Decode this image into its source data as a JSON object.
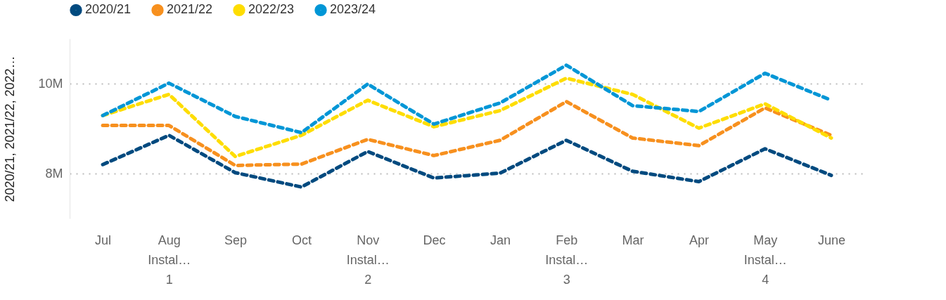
{
  "chart_data": {
    "type": "line",
    "categories": [
      "Jul",
      "Aug\nInstal…\n1",
      "Sep",
      "Oct",
      "Nov\nInstal…\n2",
      "Dec",
      "Jan",
      "Feb\nInstal…\n3",
      "Mar",
      "Apr",
      "May\nInstal…\n4",
      "June"
    ],
    "ylabel": "2020/21, 2021/22, 2022…",
    "ylim": [
      7000000,
      11000000
    ],
    "yticks": [
      {
        "value": 8000000,
        "label": "8M"
      },
      {
        "value": 10000000,
        "label": "10M"
      }
    ],
    "grid": "y",
    "legend": "top",
    "line_style": "dashed",
    "marker": "none",
    "series": [
      {
        "name": "2020/21",
        "color": "#004a7f",
        "values": [
          8200000,
          8850000,
          8020000,
          7700000,
          8490000,
          7900000,
          8010000,
          8740000,
          8050000,
          7820000,
          8550000,
          7960000
        ]
      },
      {
        "name": "2021/22",
        "color": "#f7901e",
        "values": [
          9070000,
          9070000,
          8180000,
          8210000,
          8760000,
          8400000,
          8740000,
          9600000,
          8790000,
          8620000,
          9460000,
          8850000
        ]
      },
      {
        "name": "2022/23",
        "color": "#fedd00",
        "values": [
          9290000,
          9760000,
          8380000,
          8850000,
          9630000,
          9040000,
          9400000,
          10120000,
          9760000,
          9010000,
          9550000,
          8790000
        ]
      },
      {
        "name": "2023/24",
        "color": "#0096d6",
        "values": [
          9290000,
          10010000,
          9270000,
          8910000,
          9990000,
          9100000,
          9570000,
          10410000,
          9510000,
          9380000,
          10230000,
          9630000
        ]
      }
    ]
  }
}
